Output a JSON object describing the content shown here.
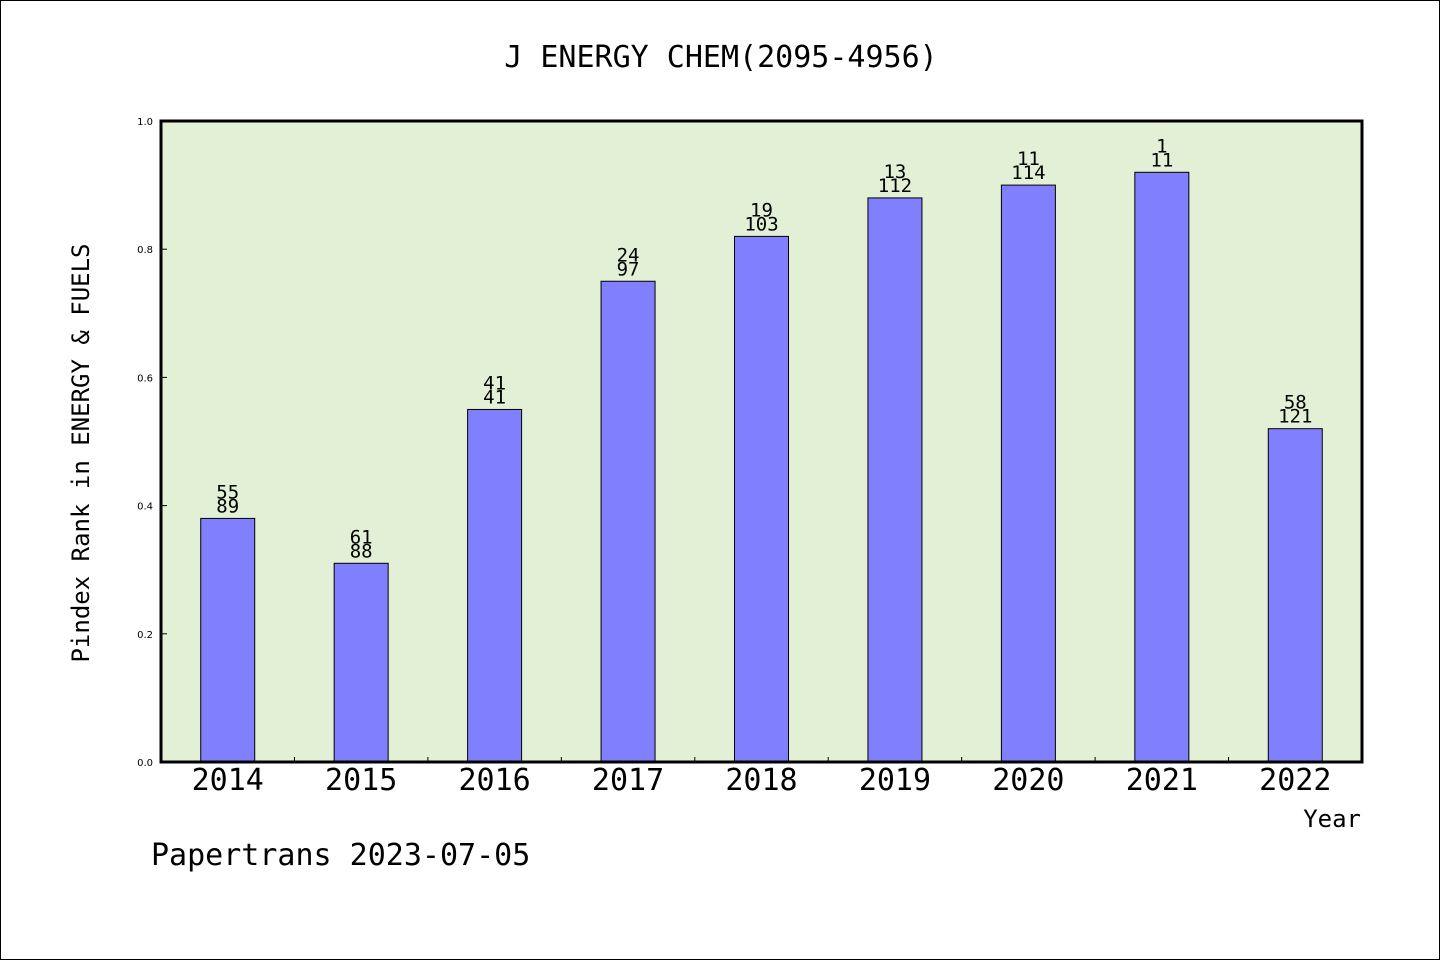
{
  "chart_data": {
    "type": "bar",
    "title": "J ENERGY CHEM(2095-4956)",
    "xlabel": "Year",
    "ylabel": "Pindex Rank in ENERGY & FUELS",
    "categories": [
      "2014",
      "2015",
      "2016",
      "2017",
      "2018",
      "2019",
      "2020",
      "2021",
      "2022"
    ],
    "values": [
      0.38,
      0.31,
      0.55,
      0.75,
      0.82,
      0.88,
      0.9,
      0.92,
      0.52
    ],
    "labels_top": [
      "55",
      "61",
      "41",
      "24",
      "19",
      "13",
      "11",
      "1",
      "58"
    ],
    "labels_bottom": [
      "89",
      "88",
      "41",
      "97",
      "103",
      "112",
      "114",
      "11",
      "121"
    ],
    "ylim": [
      0,
      1.0
    ],
    "yticks": [
      "0.0",
      "0.2",
      "0.4",
      "0.6",
      "0.8",
      "1.0"
    ],
    "grid": false,
    "legend": "none",
    "colors": {
      "plot_background": "#e2f0d6",
      "bar": "#8080ff",
      "bar_edge": "#000000"
    }
  },
  "footer": {
    "text": "Papertrans 2023-07-05"
  }
}
